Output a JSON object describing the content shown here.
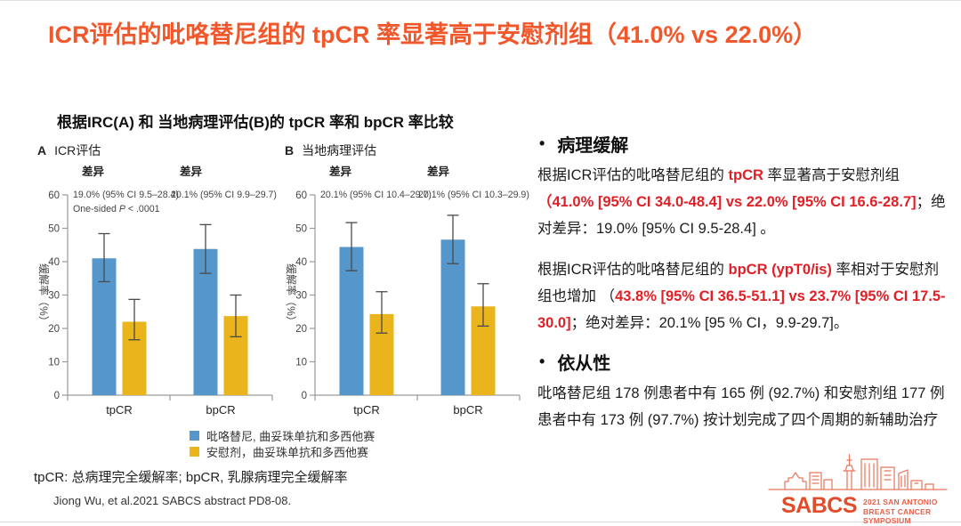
{
  "title": "ICR评估的吡咯替尼组的 tpCR 率显著高于安慰剂组（41.0% vs 22.0%）",
  "colors": {
    "title_orange": "#f0582b",
    "highlight_red": "#e01f26",
    "bar_blue": "#5596cb",
    "bar_yellow": "#e9b41c",
    "logo_orange": "#e14d2a"
  },
  "chart": {
    "title": "根据IRC(A) 和 当地病理评估(B)的 tpCR 率和 bpCR 率比较",
    "ylabel": "缓解率（%）",
    "legend": [
      {
        "label": "吡咯替尼, 曲妥珠单抗和多西他赛",
        "color": "#5596cb"
      },
      {
        "label": "安慰剂，曲妥珠单抗和多西他赛",
        "color": "#e9b41c"
      }
    ]
  },
  "chart_data": [
    {
      "type": "bar",
      "panel_label": "A",
      "panel_title": "ICR评估",
      "categories": [
        "tpCR",
        "bpCR"
      ],
      "ylabel": "缓解率（%）",
      "ylim": [
        0,
        60
      ],
      "ytick_step": 10,
      "grid": false,
      "series": [
        {
          "name": "吡咯替尼, 曲妥珠单抗和多西他赛",
          "color": "#5596cb",
          "values": [
            41.0,
            43.8
          ],
          "ci_low": [
            34.0,
            36.5
          ],
          "ci_high": [
            48.4,
            51.1
          ]
        },
        {
          "name": "安慰剂，曲妥珠单抗和多西他赛",
          "color": "#e9b41c",
          "values": [
            22.0,
            23.7
          ],
          "ci_low": [
            16.6,
            17.5
          ],
          "ci_high": [
            28.7,
            30.0
          ]
        }
      ],
      "annotations": [
        {
          "label": "差异",
          "value": "19.0% (95% CI 9.5–28.4)",
          "extra": [
            {
              "t": "One-sided "
            },
            {
              "t": "P",
              "i": true
            },
            {
              "t": " < .0001"
            }
          ]
        },
        {
          "label": "差异",
          "value": "20.1% (95% CI 9.9–29.7)"
        }
      ]
    },
    {
      "type": "bar",
      "panel_label": "B",
      "panel_title": "当地病理评估",
      "categories": [
        "tpCR",
        "bpCR"
      ],
      "ylabel": "缓解率（%）",
      "ylim": [
        0,
        60
      ],
      "ytick_step": 10,
      "grid": false,
      "series": [
        {
          "name": "吡咯替尼, 曲妥珠单抗和多西他赛",
          "color": "#5596cb",
          "values": [
            44.4,
            46.6
          ],
          "ci_low": [
            37.3,
            39.4
          ],
          "ci_high": [
            51.7,
            53.9
          ]
        },
        {
          "name": "安慰剂，曲妥珠单抗和多西他赛",
          "color": "#e9b41c",
          "values": [
            24.3,
            26.6
          ],
          "ci_low": [
            18.6,
            20.7
          ],
          "ci_high": [
            31.0,
            33.4
          ]
        }
      ],
      "annotations": [
        {
          "label": "差异",
          "value": "20.1% (95% CI 10.4–29.7)"
        },
        {
          "label": "差异",
          "value": "20.1% (95% CI 10.3–29.9)"
        }
      ]
    }
  ],
  "footnote": "tpCR: 总病理完全缓解率; bpCR, 乳腺病理完全缓解率",
  "citation": "Jiong Wu, et al.2021 SABCS abstract PD8-08.",
  "right": {
    "bullet": "•",
    "sections": [
      {
        "heading": "病理缓解",
        "paragraphs": [
          [
            {
              "t": "根据ICR评估的吡咯替尼组的 "
            },
            {
              "t": "tpCR",
              "red": true
            },
            {
              "t": " 率显著高于安慰剂组 "
            },
            {
              "t": "（41.0% [95% CI 34.0-48.4] vs 22.0% [95% CI 16.6-28.7]",
              "red": true
            },
            {
              "t": "；绝对差异：19.0% [95% CI 9.5-28.4] 。"
            }
          ],
          [
            {
              "t": "根据ICR评估的吡咯替尼组的 "
            },
            {
              "t": "bpCR (ypT0/is)",
              "red": true
            },
            {
              "t": " 率相对于安慰剂组也增加 （"
            },
            {
              "t": "43.8% [95% CI 36.5-51.1]  vs 23.7% [95% CI 17.5-30.0]",
              "red": true
            },
            {
              "t": "；绝对差异：20.1% [95 % CI，9.9-29.7]。"
            }
          ]
        ]
      },
      {
        "heading": "依从性",
        "paragraphs": [
          [
            {
              "t": "吡咯替尼组 178 例患者中有 165 例 (92.7%) 和安慰剂组 177 例患者中有 173 例 (97.7%) 按计划完成了四个周期的新辅助治疗"
            }
          ]
        ]
      }
    ]
  },
  "logo": {
    "acronym": "SABCS",
    "line1": "2021 SAN ANTONIO",
    "line2": "BREAST CANCER SYMPOSIUM"
  }
}
